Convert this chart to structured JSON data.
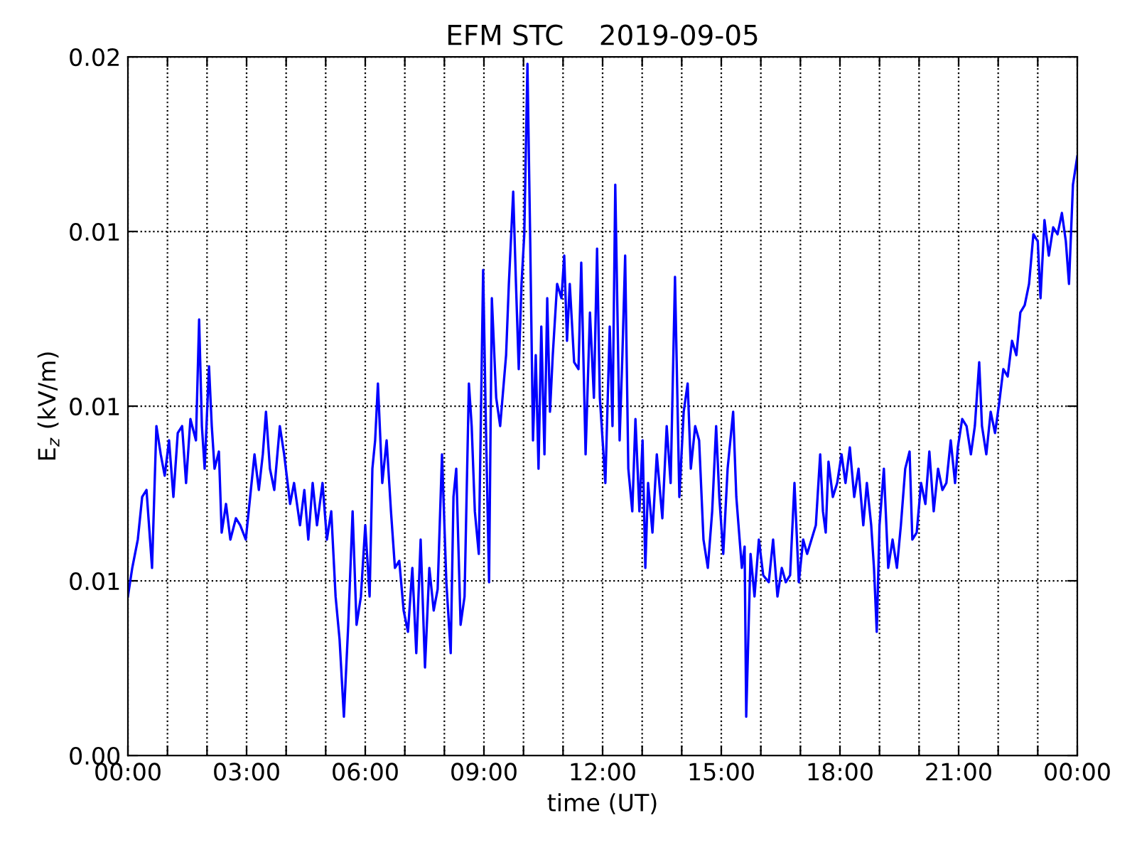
{
  "chart_data": {
    "type": "line",
    "title": "EFM STC    2019-09-05",
    "xlabel": "time (UT)",
    "ylabel": "E$_{z}$ (kV/m)",
    "series": [
      {
        "color": "#0000ff",
        "x": [
          0.0,
          0.11,
          0.25,
          0.36,
          0.47,
          0.61,
          0.72,
          0.83,
          0.93,
          1.04,
          1.15,
          1.26,
          1.37,
          1.47,
          1.58,
          1.72,
          1.8,
          1.87,
          1.94,
          2.05,
          2.12,
          2.19,
          2.3,
          2.37,
          2.48,
          2.59,
          2.73,
          2.84,
          2.98,
          3.09,
          3.2,
          3.31,
          3.41,
          3.49,
          3.59,
          3.7,
          3.84,
          3.95,
          4.1,
          4.2,
          4.35,
          4.46,
          4.56,
          4.67,
          4.78,
          4.92,
          5.03,
          5.14,
          5.25,
          5.35,
          5.46,
          5.57,
          5.68,
          5.78,
          5.89,
          6.0,
          6.11,
          6.18,
          6.25,
          6.32,
          6.43,
          6.54,
          6.65,
          6.75,
          6.86,
          6.97,
          7.08,
          7.19,
          7.29,
          7.4,
          7.51,
          7.62,
          7.73,
          7.83,
          7.94,
          8.05,
          8.16,
          8.23,
          8.3,
          8.41,
          8.51,
          8.62,
          8.69,
          8.77,
          8.87,
          8.98,
          9.05,
          9.13,
          9.2,
          9.31,
          9.41,
          9.56,
          9.63,
          9.74,
          9.81,
          9.88,
          9.95,
          10.02,
          10.1,
          10.17,
          10.24,
          10.31,
          10.38,
          10.45,
          10.53,
          10.6,
          10.67,
          10.74,
          10.85,
          10.96,
          11.03,
          11.1,
          11.17,
          11.28,
          11.39,
          11.46,
          11.57,
          11.68,
          11.78,
          11.86,
          11.93,
          12.07,
          12.18,
          12.25,
          12.32,
          12.43,
          12.5,
          12.57,
          12.65,
          12.75,
          12.83,
          12.93,
          13.01,
          13.08,
          13.15,
          13.26,
          13.37,
          13.51,
          13.62,
          13.72,
          13.83,
          13.94,
          14.05,
          14.15,
          14.23,
          14.34,
          14.44,
          14.55,
          14.66,
          14.77,
          14.87,
          14.95,
          15.05,
          15.16,
          15.3,
          15.38,
          15.45,
          15.52,
          15.59,
          15.63,
          15.74,
          15.84,
          15.95,
          16.06,
          16.2,
          16.31,
          16.42,
          16.53,
          16.63,
          16.74,
          16.85,
          16.96,
          17.07,
          17.17,
          17.28,
          17.39,
          17.5,
          17.57,
          17.64,
          17.71,
          17.82,
          17.93,
          18.04,
          18.14,
          18.25,
          18.36,
          18.47,
          18.59,
          18.68,
          18.79,
          18.86,
          18.93,
          19.0,
          19.11,
          19.22,
          19.33,
          19.44,
          19.54,
          19.65,
          19.76,
          19.83,
          19.94,
          20.05,
          20.16,
          20.26,
          20.37,
          20.48,
          20.59,
          20.69,
          20.8,
          20.91,
          20.98,
          21.09,
          21.2,
          21.31,
          21.41,
          21.52,
          21.59,
          21.7,
          21.81,
          21.92,
          22.02,
          22.13,
          22.24,
          22.35,
          22.46,
          22.56,
          22.67,
          22.78,
          22.89,
          23.0,
          23.07,
          23.17,
          23.28,
          23.39,
          23.5,
          23.61,
          23.71,
          23.79,
          23.89,
          24.0
        ],
        "values": [
          0.00455,
          0.00537,
          0.00618,
          0.0074,
          0.0076,
          0.00537,
          0.00943,
          0.00862,
          0.00801,
          0.00902,
          0.0074,
          0.00923,
          0.00943,
          0.0078,
          0.00963,
          0.00902,
          0.01248,
          0.00943,
          0.00821,
          0.01114,
          0.00943,
          0.00821,
          0.0087,
          0.00638,
          0.0072,
          0.00618,
          0.00679,
          0.00659,
          0.00618,
          0.0074,
          0.00862,
          0.0076,
          0.00862,
          0.00984,
          0.00821,
          0.0076,
          0.00943,
          0.00862,
          0.0072,
          0.0078,
          0.00659,
          0.0076,
          0.00618,
          0.0078,
          0.00659,
          0.0078,
          0.00618,
          0.00699,
          0.00455,
          0.00333,
          0.00111,
          0.00374,
          0.00699,
          0.00374,
          0.00455,
          0.00659,
          0.00455,
          0.00821,
          0.00902,
          0.01065,
          0.0078,
          0.00902,
          0.00699,
          0.00537,
          0.00557,
          0.00415,
          0.00354,
          0.00537,
          0.00293,
          0.00618,
          0.00252,
          0.00537,
          0.00415,
          0.00476,
          0.00862,
          0.00496,
          0.00293,
          0.0074,
          0.00821,
          0.00374,
          0.00455,
          0.01065,
          0.00943,
          0.00699,
          0.00577,
          0.0139,
          0.00943,
          0.00496,
          0.01309,
          0.01024,
          0.00943,
          0.01146,
          0.0135,
          0.01614,
          0.0135,
          0.01106,
          0.0135,
          0.01492,
          0.0198,
          0.01472,
          0.00902,
          0.01146,
          0.00821,
          0.01228,
          0.00862,
          0.01309,
          0.00984,
          0.01146,
          0.0135,
          0.01309,
          0.01431,
          0.01187,
          0.0135,
          0.01126,
          0.01106,
          0.01411,
          0.00862,
          0.01268,
          0.01024,
          0.01451,
          0.01024,
          0.0078,
          0.01228,
          0.00943,
          0.01634,
          0.00902,
          0.01146,
          0.01431,
          0.00821,
          0.00699,
          0.00963,
          0.00699,
          0.00902,
          0.00537,
          0.0078,
          0.00638,
          0.00862,
          0.00679,
          0.00943,
          0.0078,
          0.0137,
          0.0074,
          0.00984,
          0.01065,
          0.00821,
          0.00943,
          0.00902,
          0.00618,
          0.00537,
          0.00699,
          0.00943,
          0.0074,
          0.00577,
          0.00821,
          0.00984,
          0.0074,
          0.00638,
          0.00537,
          0.00598,
          0.00111,
          0.00577,
          0.00455,
          0.00618,
          0.00516,
          0.00496,
          0.00618,
          0.00455,
          0.00537,
          0.00496,
          0.00516,
          0.0078,
          0.00496,
          0.00618,
          0.00577,
          0.00618,
          0.00659,
          0.00862,
          0.00699,
          0.00638,
          0.00841,
          0.0074,
          0.0078,
          0.00862,
          0.0078,
          0.00882,
          0.0074,
          0.00821,
          0.00659,
          0.0078,
          0.00659,
          0.00537,
          0.00354,
          0.00659,
          0.00821,
          0.00537,
          0.00618,
          0.00537,
          0.00659,
          0.00821,
          0.0087,
          0.00618,
          0.00638,
          0.0078,
          0.0072,
          0.0087,
          0.00699,
          0.00821,
          0.0076,
          0.0078,
          0.00902,
          0.0078,
          0.00882,
          0.00963,
          0.00943,
          0.00862,
          0.00943,
          0.01126,
          0.00943,
          0.00862,
          0.00984,
          0.00923,
          0.01004,
          0.01106,
          0.01085,
          0.01187,
          0.01146,
          0.01268,
          0.01289,
          0.0135,
          0.01492,
          0.01472,
          0.01309,
          0.01533,
          0.01431,
          0.01512,
          0.01492,
          0.01553,
          0.01472,
          0.0135,
          0.01634,
          0.01715
        ]
      }
    ],
    "xlim": [
      0,
      24
    ],
    "xticks": [
      {
        "value": 0,
        "label": "00:00"
      },
      {
        "value": 1,
        "label": null
      },
      {
        "value": 2,
        "label": null
      },
      {
        "value": 3,
        "label": "03:00"
      },
      {
        "value": 4,
        "label": null
      },
      {
        "value": 5,
        "label": null
      },
      {
        "value": 6,
        "label": "06:00"
      },
      {
        "value": 7,
        "label": null
      },
      {
        "value": 8,
        "label": null
      },
      {
        "value": 9,
        "label": "09:00"
      },
      {
        "value": 10,
        "label": null
      },
      {
        "value": 11,
        "label": null
      },
      {
        "value": 12,
        "label": "12:00"
      },
      {
        "value": 13,
        "label": null
      },
      {
        "value": 14,
        "label": null
      },
      {
        "value": 15,
        "label": "15:00"
      },
      {
        "value": 16,
        "label": null
      },
      {
        "value": 17,
        "label": null
      },
      {
        "value": 18,
        "label": "18:00"
      },
      {
        "value": 19,
        "label": null
      },
      {
        "value": 20,
        "label": null
      },
      {
        "value": 21,
        "label": "21:00"
      },
      {
        "value": 22,
        "label": null
      },
      {
        "value": 23,
        "label": null
      },
      {
        "value": 24,
        "label": "00:00"
      }
    ],
    "ylim": [
      0,
      0.02
    ],
    "yticks": [
      {
        "value": 0,
        "label": "0.00"
      },
      {
        "value": 0.005,
        "label": "0.01"
      },
      {
        "value": 0.01,
        "label": "0.01"
      },
      {
        "value": 0.015,
        "label": "0.01"
      },
      {
        "value": 0.02,
        "label": "0.02"
      }
    ],
    "grid": true,
    "line_style": "solid"
  }
}
